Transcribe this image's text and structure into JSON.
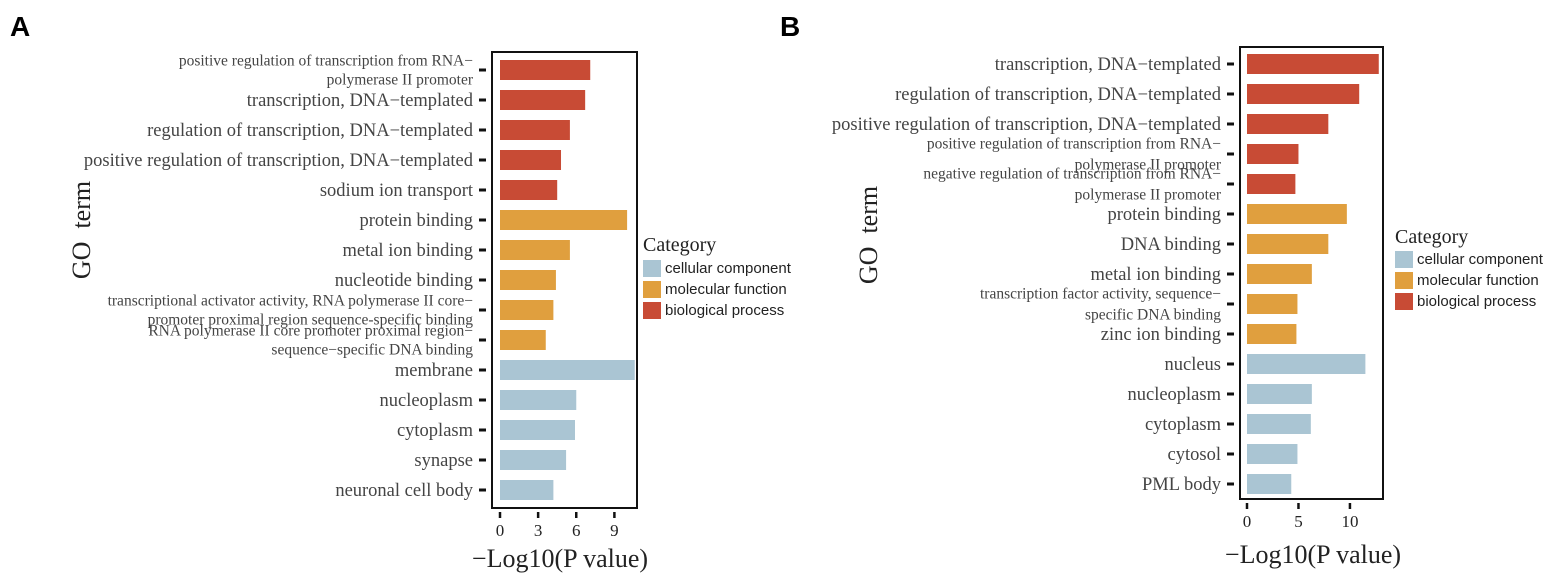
{
  "colors": {
    "cellular component": "#aac5d3",
    "molecular function": "#e09f3e",
    "biological process": "#c84b35"
  },
  "chart_data": [
    {
      "panel": "A",
      "type": "bar",
      "orientation": "horizontal",
      "xlabel": "−Log10(P value)",
      "ylabel": "GO  term",
      "xlim": [
        0,
        10.7
      ],
      "xticks": [
        "0",
        "3",
        "6",
        "9"
      ],
      "legend_title": "Category",
      "legend": [
        "cellular component",
        "molecular function",
        "biological process"
      ],
      "terms": [
        {
          "lines": [
            "positive regulation of transcription from RNA−",
            "polymerase II promoter"
          ],
          "value": 7.1,
          "category": "biological process"
        },
        {
          "lines": [
            "transcription, DNA−templated"
          ],
          "value": 6.7,
          "category": "biological process"
        },
        {
          "lines": [
            "regulation of transcription, DNA−templated"
          ],
          "value": 5.5,
          "category": "biological process"
        },
        {
          "lines": [
            "positive regulation of transcription, DNA−templated"
          ],
          "value": 4.8,
          "category": "biological process"
        },
        {
          "lines": [
            "sodium ion transport"
          ],
          "value": 4.5,
          "category": "biological process"
        },
        {
          "lines": [
            "protein binding"
          ],
          "value": 10.0,
          "category": "molecular function"
        },
        {
          "lines": [
            "metal ion binding"
          ],
          "value": 5.5,
          "category": "molecular function"
        },
        {
          "lines": [
            "nucleotide binding"
          ],
          "value": 4.4,
          "category": "molecular function"
        },
        {
          "lines": [
            "transcriptional activator activity, RNA polymerase II core−",
            "promoter proximal region sequence-specific binding"
          ],
          "value": 4.2,
          "category": "molecular function"
        },
        {
          "lines": [
            "RNA polymerase II core promoter proximal region−",
            "sequence−specific DNA binding"
          ],
          "value": 3.6,
          "category": "molecular function"
        },
        {
          "lines": [
            "membrane"
          ],
          "value": 10.6,
          "category": "cellular component"
        },
        {
          "lines": [
            "nucleoplasm"
          ],
          "value": 6.0,
          "category": "cellular component"
        },
        {
          "lines": [
            "cytoplasm"
          ],
          "value": 5.9,
          "category": "cellular component"
        },
        {
          "lines": [
            "synapse"
          ],
          "value": 5.2,
          "category": "cellular component"
        },
        {
          "lines": [
            "neuronal cell body"
          ],
          "value": 4.2,
          "category": "cellular component"
        }
      ]
    },
    {
      "panel": "B",
      "type": "bar",
      "orientation": "horizontal",
      "xlabel": "−Log10(P value)",
      "ylabel": "GO  term",
      "xlim": [
        0,
        13.6
      ],
      "xticks": [
        "0",
        "5",
        "10"
      ],
      "legend_title": "Category",
      "legend": [
        "cellular component",
        "molecular function",
        "biological process"
      ],
      "terms": [
        {
          "lines": [
            "transcription, DNA−templated"
          ],
          "value": 12.8,
          "category": "biological process"
        },
        {
          "lines": [
            "regulation of transcription, DNA−templated"
          ],
          "value": 10.9,
          "category": "biological process"
        },
        {
          "lines": [
            "positive regulation of transcription, DNA−templated"
          ],
          "value": 7.9,
          "category": "biological process"
        },
        {
          "lines": [
            "positive regulation of transcription from RNA−",
            "polymerase II promoter"
          ],
          "value": 5.0,
          "category": "biological process"
        },
        {
          "lines": [
            "negative regulation of transcription from RNA−",
            "polymerase II promoter"
          ],
          "value": 4.7,
          "category": "biological process"
        },
        {
          "lines": [
            "protein binding"
          ],
          "value": 9.7,
          "category": "molecular function"
        },
        {
          "lines": [
            "DNA binding"
          ],
          "value": 7.9,
          "category": "molecular function"
        },
        {
          "lines": [
            "metal ion binding"
          ],
          "value": 6.3,
          "category": "molecular function"
        },
        {
          "lines": [
            "transcription factor activity, sequence−",
            "specific DNA binding"
          ],
          "value": 4.9,
          "category": "molecular function"
        },
        {
          "lines": [
            "zinc ion binding"
          ],
          "value": 4.8,
          "category": "molecular function"
        },
        {
          "lines": [
            "nucleus"
          ],
          "value": 11.5,
          "category": "cellular component"
        },
        {
          "lines": [
            "nucleoplasm"
          ],
          "value": 6.3,
          "category": "cellular component"
        },
        {
          "lines": [
            "cytoplasm"
          ],
          "value": 6.2,
          "category": "cellular component"
        },
        {
          "lines": [
            "cytosol"
          ],
          "value": 4.9,
          "category": "cellular component"
        },
        {
          "lines": [
            "PML body"
          ],
          "value": 4.3,
          "category": "cellular component"
        }
      ]
    }
  ]
}
